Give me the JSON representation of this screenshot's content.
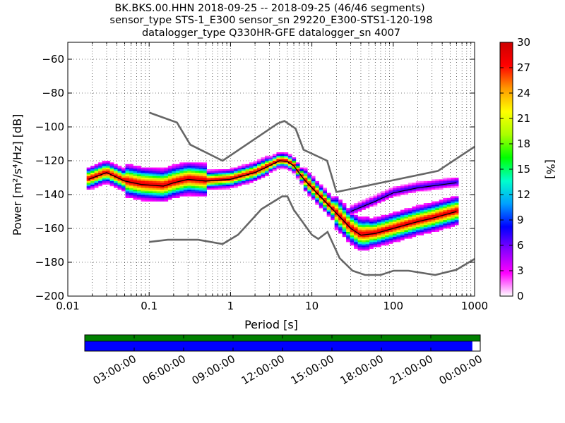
{
  "chart_data": {
    "type": "heatmap",
    "title_lines": [
      "BK.BKS.00.HHN   2018-09-25 -- 2018-09-25  (46/46 segments)",
      "sensor_type STS-1_E300 sensor_sn 29220_E300-STS1-120-198",
      "datalogger_type Q330HR-GFE datalogger_sn 4007"
    ],
    "xlabel": "Period [s]",
    "ylabel_text": "Power [m²/s⁴/Hz] [dB]",
    "xscale": "log",
    "xlim": [
      0.01,
      1000
    ],
    "ylim": [
      -200,
      -50
    ],
    "x_ticks": [
      {
        "value": 0.01,
        "label": "0.01"
      },
      {
        "value": 0.1,
        "label": "0.1"
      },
      {
        "value": 1,
        "label": "1"
      },
      {
        "value": 10,
        "label": "10"
      },
      {
        "value": 100,
        "label": "100"
      },
      {
        "value": 1000,
        "label": "1000"
      }
    ],
    "y_ticks": [
      {
        "value": -60,
        "label": "−60"
      },
      {
        "value": -80,
        "label": "−80"
      },
      {
        "value": -100,
        "label": "−100"
      },
      {
        "value": -120,
        "label": "−120"
      },
      {
        "value": -140,
        "label": "−140"
      },
      {
        "value": -160,
        "label": "−160"
      },
      {
        "value": -180,
        "label": "−180"
      },
      {
        "value": -200,
        "label": "−200"
      }
    ],
    "grid": "dotted",
    "colorbar": {
      "label": "[%]",
      "range": [
        0,
        30
      ],
      "ticks": [
        {
          "value": 0,
          "label": "0"
        },
        {
          "value": 3,
          "label": "3"
        },
        {
          "value": 6,
          "label": "6"
        },
        {
          "value": 9,
          "label": "9"
        },
        {
          "value": 12,
          "label": "12"
        },
        {
          "value": 15,
          "label": "15"
        },
        {
          "value": 18,
          "label": "18"
        },
        {
          "value": 21,
          "label": "21"
        },
        {
          "value": 24,
          "label": "24"
        },
        {
          "value": 27,
          "label": "27"
        },
        {
          "value": 30,
          "label": "30"
        }
      ],
      "colors": [
        "#ffffff",
        "#ff00ff",
        "#8800ff",
        "#0000ff",
        "#00a0ff",
        "#00ffcc",
        "#00ff00",
        "#aaff00",
        "#ffff00",
        "#ff9900",
        "#ff0000",
        "#cc0000"
      ]
    },
    "nhnm": [
      [
        0.1,
        -168
      ],
      [
        0.17,
        -166.7
      ],
      [
        0.4,
        -166.7
      ],
      [
        0.8,
        -169.2
      ],
      [
        1.24,
        -163.7
      ],
      [
        2.4,
        -148.6
      ],
      [
        4.3,
        -141.1
      ],
      [
        5,
        -141.1
      ],
      [
        6,
        -149
      ],
      [
        10,
        -163.8
      ],
      [
        12,
        -166.2
      ],
      [
        15.6,
        -162.1
      ],
      [
        21.9,
        -177.5
      ],
      [
        31.6,
        -185
      ],
      [
        45,
        -187.5
      ],
      [
        70,
        -187.5
      ],
      [
        101,
        -185
      ],
      [
        154,
        -185
      ],
      [
        328,
        -187.5
      ],
      [
        600,
        -184.4
      ],
      [
        1000,
        -178
      ]
    ],
    "nlnm": [
      [
        0.1,
        -91.5
      ],
      [
        0.22,
        -97.4
      ],
      [
        0.32,
        -110.5
      ],
      [
        0.8,
        -120
      ],
      [
        3.8,
        -98
      ],
      [
        4.6,
        -96.5
      ],
      [
        6.3,
        -101
      ],
      [
        7.9,
        -113.5
      ],
      [
        15.4,
        -120
      ],
      [
        20,
        -138.5
      ],
      [
        354.8,
        -126
      ],
      [
        1000,
        -111.7
      ]
    ],
    "mode_line": [
      [
        0.018,
        -131
      ],
      [
        0.03,
        -127
      ],
      [
        0.05,
        -132
      ],
      [
        0.08,
        -134
      ],
      [
        0.15,
        -135
      ],
      [
        0.2,
        -133
      ],
      [
        0.3,
        -131
      ],
      [
        0.5,
        -132
      ],
      [
        1,
        -131
      ],
      [
        2,
        -127
      ],
      [
        3,
        -123
      ],
      [
        4,
        -120
      ],
      [
        5,
        -120.5
      ],
      [
        6,
        -123
      ],
      [
        8,
        -131
      ],
      [
        12,
        -140
      ],
      [
        20,
        -151
      ],
      [
        30,
        -160
      ],
      [
        40,
        -164
      ],
      [
        60,
        -163
      ],
      [
        100,
        -160
      ],
      [
        200,
        -156
      ],
      [
        300,
        -154
      ],
      [
        600,
        -150
      ]
    ],
    "upper_line": [
      [
        30,
        -150
      ],
      [
        60,
        -144
      ],
      [
        100,
        -139
      ],
      [
        200,
        -136
      ],
      [
        600,
        -133
      ]
    ],
    "time_axis": {
      "ticks": [
        "03:00:00",
        "06:00:00",
        "09:00:00",
        "12:00:00",
        "15:00:00",
        "18:00:00",
        "21:00:00",
        "00:00:00"
      ],
      "data_coverage": [
        0,
        1
      ],
      "segment_coverage": [
        0,
        0.98
      ],
      "data_color": "#008000",
      "segment_color": "#0000ff"
    }
  }
}
